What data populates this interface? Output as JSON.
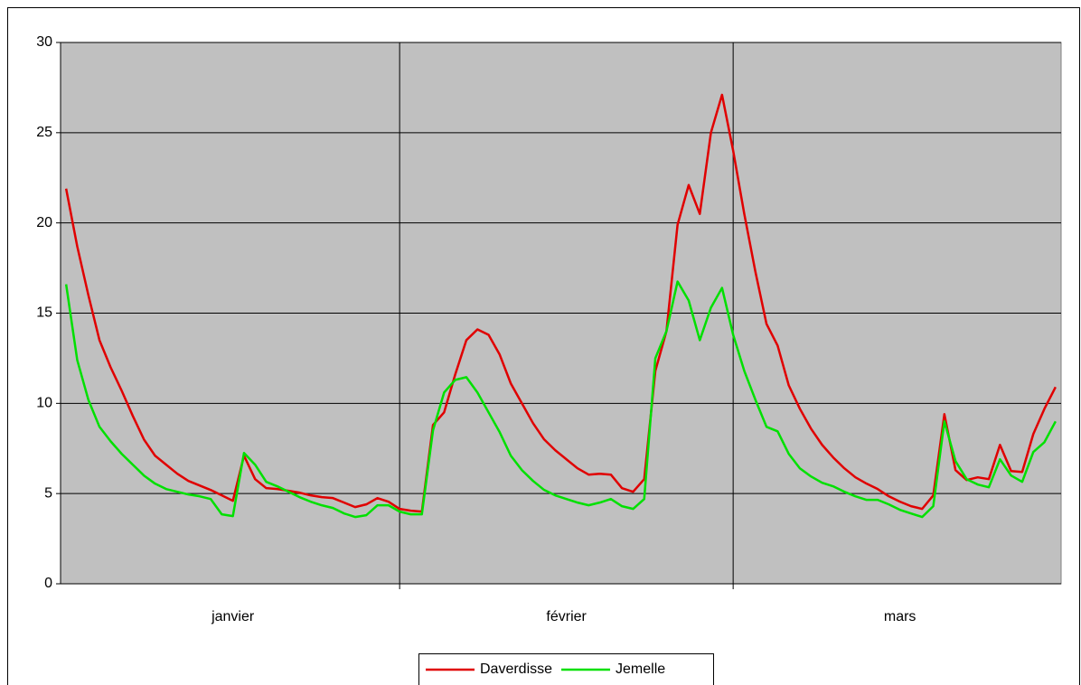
{
  "chart_data": {
    "type": "line",
    "categories": [
      null,
      null,
      null,
      null,
      null,
      null,
      null,
      null,
      null,
      null,
      null,
      null,
      null,
      null,
      null,
      "janvier",
      null,
      null,
      null,
      null,
      null,
      null,
      null,
      null,
      null,
      null,
      null,
      null,
      null,
      null,
      null,
      null,
      null,
      null,
      null,
      null,
      null,
      null,
      null,
      null,
      null,
      null,
      null,
      null,
      null,
      "février",
      null,
      null,
      null,
      null,
      null,
      null,
      null,
      null,
      null,
      null,
      null,
      null,
      null,
      null,
      null,
      null,
      null,
      null,
      null,
      null,
      null,
      null,
      null,
      null,
      null,
      null,
      null,
      null,
      null,
      "mars",
      null,
      null,
      null,
      null,
      null,
      null,
      null,
      null,
      null,
      null,
      null,
      null,
      null,
      null
    ],
    "series": [
      {
        "name": "Daverdisse",
        "color": "#e00000",
        "values": [
          21.9,
          18.7,
          16.0,
          13.5,
          12.0,
          10.7,
          9.3,
          8.0,
          7.1,
          6.6,
          6.1,
          5.7,
          5.45,
          5.2,
          4.9,
          4.6,
          7.1,
          5.8,
          5.3,
          5.25,
          5.15,
          5.05,
          4.9,
          4.8,
          4.75,
          4.5,
          4.25,
          4.4,
          4.75,
          4.55,
          4.15,
          4.05,
          4.0,
          8.8,
          9.5,
          11.6,
          13.5,
          14.1,
          13.8,
          12.7,
          11.1,
          10.0,
          8.9,
          8.0,
          7.4,
          6.9,
          6.4,
          6.05,
          6.1,
          6.05,
          5.3,
          5.1,
          5.8,
          11.8,
          14.0,
          19.9,
          22.1,
          20.5,
          25.0,
          27.1,
          24.0,
          20.5,
          17.3,
          14.4,
          13.2,
          11.0,
          9.7,
          8.6,
          7.7,
          7.0,
          6.4,
          5.9,
          5.55,
          5.25,
          4.85,
          4.55,
          4.3,
          4.15,
          4.9,
          9.4,
          6.3,
          5.75,
          5.9,
          5.8,
          7.7,
          6.25,
          6.2,
          8.3,
          9.7,
          10.9
        ]
      },
      {
        "name": "Jemelle",
        "color": "#00e000",
        "values": [
          16.6,
          12.4,
          10.2,
          8.7,
          7.9,
          7.2,
          6.6,
          6.0,
          5.55,
          5.25,
          5.1,
          4.95,
          4.85,
          4.7,
          3.85,
          3.75,
          7.25,
          6.6,
          5.65,
          5.4,
          5.1,
          4.8,
          4.55,
          4.35,
          4.2,
          3.9,
          3.7,
          3.8,
          4.35,
          4.35,
          4.0,
          3.85,
          3.85,
          8.5,
          10.6,
          11.3,
          11.45,
          10.6,
          9.5,
          8.4,
          7.1,
          6.3,
          5.7,
          5.2,
          4.9,
          4.7,
          4.5,
          4.35,
          4.5,
          4.7,
          4.3,
          4.15,
          4.7,
          12.5,
          14.0,
          16.75,
          15.7,
          13.5,
          15.3,
          16.4,
          13.8,
          11.8,
          10.2,
          8.7,
          8.45,
          7.2,
          6.4,
          5.95,
          5.6,
          5.4,
          5.1,
          4.85,
          4.65,
          4.65,
          4.4,
          4.1,
          3.9,
          3.7,
          4.3,
          9.0,
          6.8,
          5.8,
          5.5,
          5.35,
          6.9,
          6.0,
          5.65,
          7.3,
          7.85,
          9.0
        ]
      }
    ],
    "ylim": [
      0,
      30
    ],
    "yticks": [
      0,
      5,
      10,
      15,
      20,
      25,
      30
    ],
    "grid": true,
    "plot_background": "#c0c0c0",
    "legend": "bottom"
  }
}
